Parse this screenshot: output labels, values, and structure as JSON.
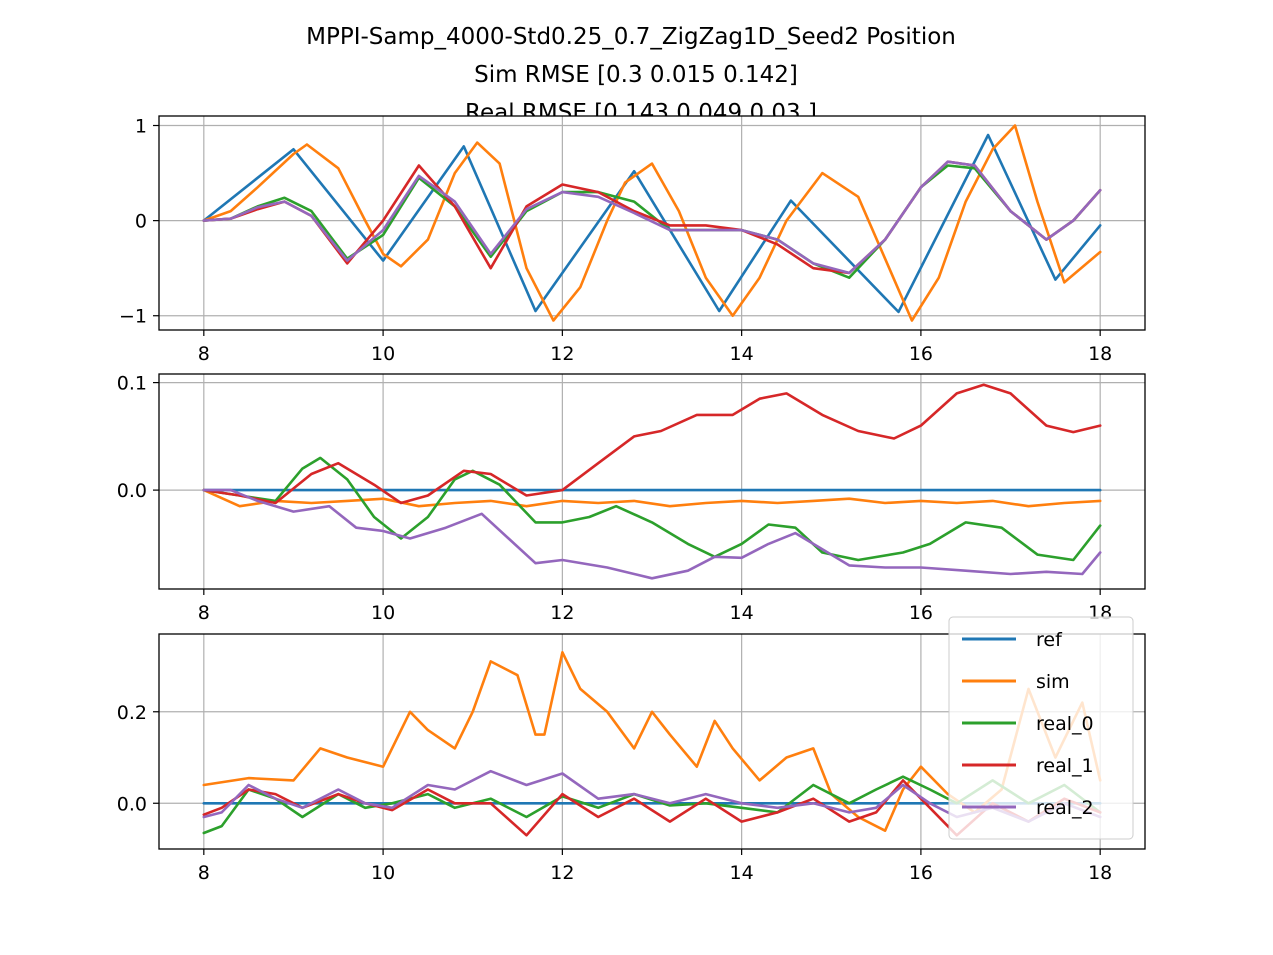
{
  "title_lines": [
    "MPPI-Samp_4000-Std0.25_0.7_ZigZag1D_Seed2   Position",
    "Sim RMSE [0.3   0.015 0.142]",
    "Real RMSE [0.143 0.049 0.03 ]"
  ],
  "colors": {
    "ref": "#1f77b4",
    "sim": "#ff7f0e",
    "real_0": "#2ca02c",
    "real_1": "#d62728",
    "real_2": "#9467bd"
  },
  "legend": [
    "ref",
    "sim",
    "real_0",
    "real_1",
    "real_2"
  ],
  "chart_data": [
    {
      "type": "line",
      "xlim": [
        7.5,
        18.5
      ],
      "ylim": [
        -1.15,
        1.1
      ],
      "xticks": [
        8,
        10,
        12,
        14,
        16,
        18
      ],
      "yticks": [
        -1,
        0,
        1
      ],
      "ytick_labels": [
        "−1",
        "0",
        "1"
      ],
      "grid": true,
      "series": [
        {
          "name": "ref",
          "x": [
            8.0,
            9.0,
            10.0,
            10.9,
            11.7,
            12.8,
            13.75,
            14.55,
            15.75,
            16.75,
            17.5,
            18.0
          ],
          "y": [
            0.0,
            0.75,
            -0.42,
            0.78,
            -0.95,
            0.52,
            -0.95,
            0.21,
            -0.96,
            0.9,
            -0.62,
            -0.05
          ]
        },
        {
          "name": "sim",
          "x": [
            8.0,
            8.3,
            8.6,
            9.0,
            9.15,
            9.5,
            9.8,
            10.0,
            10.2,
            10.5,
            10.8,
            11.05,
            11.3,
            11.6,
            11.9,
            12.2,
            12.5,
            12.7,
            13.0,
            13.3,
            13.6,
            13.9,
            14.2,
            14.5,
            14.9,
            15.3,
            15.6,
            15.9,
            16.2,
            16.5,
            16.8,
            17.05,
            17.3,
            17.6,
            18.0
          ],
          "y": [
            0.0,
            0.1,
            0.35,
            0.7,
            0.8,
            0.55,
            0.0,
            -0.35,
            -0.48,
            -0.2,
            0.5,
            0.82,
            0.6,
            -0.5,
            -1.05,
            -0.7,
            0.0,
            0.4,
            0.6,
            0.1,
            -0.6,
            -1.0,
            -0.6,
            0.0,
            0.5,
            0.25,
            -0.4,
            -1.05,
            -0.6,
            0.2,
            0.75,
            1.0,
            0.2,
            -0.65,
            -0.33
          ]
        },
        {
          "name": "real_0",
          "x": [
            8.0,
            8.3,
            8.6,
            8.9,
            9.2,
            9.6,
            10.0,
            10.4,
            10.8,
            11.2,
            11.6,
            12.0,
            12.4,
            12.8,
            13.2,
            13.6,
            14.0,
            14.4,
            14.8,
            15.2,
            15.6,
            16.0,
            16.3,
            16.6,
            17.0,
            17.4,
            17.7,
            18.0
          ],
          "y": [
            0.0,
            0.02,
            0.15,
            0.24,
            0.1,
            -0.4,
            -0.15,
            0.45,
            0.15,
            -0.38,
            0.1,
            0.3,
            0.3,
            0.2,
            -0.1,
            -0.1,
            -0.1,
            -0.2,
            -0.45,
            -0.6,
            -0.2,
            0.35,
            0.58,
            0.55,
            0.1,
            -0.2,
            0.0,
            0.32
          ]
        },
        {
          "name": "real_1",
          "x": [
            8.0,
            8.3,
            8.6,
            8.9,
            9.2,
            9.6,
            10.0,
            10.4,
            10.8,
            11.2,
            11.6,
            12.0,
            12.4,
            12.8,
            13.2,
            13.6,
            14.0,
            14.4,
            14.8,
            15.2,
            15.6,
            16.0,
            16.3,
            16.6,
            17.0,
            17.4,
            17.7,
            18.0
          ],
          "y": [
            0.0,
            0.02,
            0.12,
            0.2,
            0.05,
            -0.45,
            0.0,
            0.58,
            0.15,
            -0.5,
            0.15,
            0.38,
            0.3,
            0.1,
            -0.05,
            -0.05,
            -0.1,
            -0.25,
            -0.5,
            -0.55,
            -0.2,
            0.35,
            0.62,
            0.58,
            0.1,
            -0.2,
            0.0,
            0.32
          ]
        },
        {
          "name": "real_2",
          "x": [
            8.0,
            8.3,
            8.6,
            8.9,
            9.2,
            9.6,
            10.0,
            10.4,
            10.8,
            11.2,
            11.6,
            12.0,
            12.4,
            12.8,
            13.2,
            13.6,
            14.0,
            14.4,
            14.8,
            15.2,
            15.6,
            16.0,
            16.3,
            16.6,
            17.0,
            17.4,
            17.7,
            18.0
          ],
          "y": [
            0.0,
            0.02,
            0.14,
            0.2,
            0.05,
            -0.42,
            -0.1,
            0.47,
            0.2,
            -0.35,
            0.12,
            0.3,
            0.25,
            0.08,
            -0.1,
            -0.1,
            -0.1,
            -0.2,
            -0.45,
            -0.55,
            -0.2,
            0.35,
            0.62,
            0.58,
            0.1,
            -0.2,
            0.0,
            0.32
          ]
        }
      ]
    },
    {
      "type": "line",
      "xlim": [
        7.5,
        18.5
      ],
      "ylim": [
        -0.092,
        0.108
      ],
      "xticks": [
        8,
        10,
        12,
        14,
        16,
        18
      ],
      "yticks": [
        0.0,
        0.1
      ],
      "ytick_labels": [
        "0.0",
        "0.1"
      ],
      "grid": true,
      "series": [
        {
          "name": "ref",
          "x": [
            8.0,
            18.0
          ],
          "y": [
            0.0,
            0.0
          ]
        },
        {
          "name": "sim",
          "x": [
            8.0,
            8.4,
            8.8,
            9.2,
            9.6,
            10.0,
            10.4,
            10.8,
            11.2,
            11.6,
            12.0,
            12.4,
            12.8,
            13.2,
            13.6,
            14.0,
            14.4,
            14.8,
            15.2,
            15.6,
            16.0,
            16.4,
            16.8,
            17.2,
            17.6,
            18.0
          ],
          "y": [
            0.0,
            -0.015,
            -0.01,
            -0.012,
            -0.01,
            -0.008,
            -0.015,
            -0.012,
            -0.01,
            -0.015,
            -0.01,
            -0.012,
            -0.01,
            -0.015,
            -0.012,
            -0.01,
            -0.012,
            -0.01,
            -0.008,
            -0.012,
            -0.01,
            -0.012,
            -0.01,
            -0.015,
            -0.012,
            -0.01
          ]
        },
        {
          "name": "real_0",
          "x": [
            8.0,
            8.4,
            8.8,
            9.1,
            9.3,
            9.6,
            9.9,
            10.2,
            10.5,
            10.8,
            11.0,
            11.3,
            11.7,
            12.0,
            12.3,
            12.6,
            13.0,
            13.4,
            13.7,
            14.0,
            14.3,
            14.6,
            14.9,
            15.3,
            15.8,
            16.1,
            16.5,
            16.9,
            17.3,
            17.7,
            18.0
          ],
          "y": [
            0.0,
            -0.005,
            -0.01,
            0.02,
            0.03,
            0.01,
            -0.025,
            -0.045,
            -0.025,
            0.01,
            0.018,
            0.005,
            -0.03,
            -0.03,
            -0.025,
            -0.015,
            -0.03,
            -0.05,
            -0.062,
            -0.05,
            -0.032,
            -0.035,
            -0.058,
            -0.065,
            -0.058,
            -0.05,
            -0.03,
            -0.035,
            -0.06,
            -0.065,
            -0.033
          ]
        },
        {
          "name": "real_1",
          "x": [
            8.0,
            8.4,
            8.8,
            9.2,
            9.5,
            9.9,
            10.2,
            10.5,
            10.9,
            11.2,
            11.6,
            12.0,
            12.4,
            12.8,
            13.1,
            13.5,
            13.9,
            14.2,
            14.5,
            14.9,
            15.3,
            15.7,
            16.0,
            16.4,
            16.7,
            17.0,
            17.4,
            17.7,
            18.0
          ],
          "y": [
            0.0,
            -0.005,
            -0.012,
            0.015,
            0.025,
            0.005,
            -0.012,
            -0.005,
            0.018,
            0.015,
            -0.005,
            0.0,
            0.025,
            0.05,
            0.055,
            0.07,
            0.07,
            0.085,
            0.09,
            0.07,
            0.055,
            0.048,
            0.06,
            0.09,
            0.098,
            0.09,
            0.06,
            0.054,
            0.06
          ]
        },
        {
          "name": "real_2",
          "x": [
            8.0,
            8.3,
            8.6,
            9.0,
            9.4,
            9.7,
            10.0,
            10.3,
            10.7,
            11.1,
            11.4,
            11.7,
            12.0,
            12.5,
            13.0,
            13.4,
            13.7,
            14.0,
            14.3,
            14.6,
            14.9,
            15.2,
            15.6,
            16.0,
            16.5,
            17.0,
            17.4,
            17.8,
            18.0
          ],
          "y": [
            0.0,
            0.0,
            -0.01,
            -0.02,
            -0.015,
            -0.035,
            -0.038,
            -0.045,
            -0.035,
            -0.022,
            -0.045,
            -0.068,
            -0.065,
            -0.072,
            -0.082,
            -0.075,
            -0.062,
            -0.063,
            -0.05,
            -0.04,
            -0.055,
            -0.07,
            -0.072,
            -0.072,
            -0.075,
            -0.078,
            -0.076,
            -0.078,
            -0.058
          ]
        }
      ]
    },
    {
      "type": "line",
      "xlim": [
        7.5,
        18.5
      ],
      "ylim": [
        -0.1,
        0.37
      ],
      "xticks": [
        8,
        10,
        12,
        14,
        16,
        18
      ],
      "yticks": [
        0.0,
        0.2
      ],
      "ytick_labels": [
        "0.0",
        "0.2"
      ],
      "grid": true,
      "legend_position": "top-right",
      "series": [
        {
          "name": "ref",
          "x": [
            8.0,
            18.0
          ],
          "y": [
            0.0,
            0.0
          ]
        },
        {
          "name": "sim",
          "x": [
            8.0,
            8.5,
            9.0,
            9.3,
            9.6,
            10.0,
            10.3,
            10.5,
            10.8,
            11.0,
            11.2,
            11.5,
            11.7,
            11.8,
            12.0,
            12.2,
            12.5,
            12.8,
            13.0,
            13.2,
            13.5,
            13.7,
            13.9,
            14.2,
            14.5,
            14.8,
            15.0,
            15.3,
            15.6,
            15.8,
            16.0,
            16.3,
            16.6,
            16.9,
            17.2,
            17.5,
            17.8,
            18.0
          ],
          "y": [
            0.04,
            0.055,
            0.05,
            0.12,
            0.1,
            0.08,
            0.2,
            0.16,
            0.12,
            0.2,
            0.31,
            0.28,
            0.15,
            0.15,
            0.33,
            0.25,
            0.2,
            0.12,
            0.2,
            0.15,
            0.08,
            0.18,
            0.12,
            0.05,
            0.1,
            0.12,
            0.02,
            -0.03,
            -0.06,
            0.03,
            0.08,
            0.02,
            -0.02,
            0.03,
            0.25,
            0.1,
            0.22,
            0.05
          ]
        },
        {
          "name": "real_0",
          "x": [
            8.0,
            8.2,
            8.5,
            8.8,
            9.1,
            9.5,
            9.8,
            10.1,
            10.5,
            10.8,
            11.2,
            11.6,
            12.0,
            12.4,
            12.8,
            13.2,
            13.6,
            14.0,
            14.4,
            14.8,
            15.2,
            15.5,
            15.8,
            16.1,
            16.4,
            16.8,
            17.2,
            17.6,
            18.0
          ],
          "y": [
            -0.065,
            -0.05,
            0.03,
            0.01,
            -0.03,
            0.02,
            -0.01,
            0.0,
            0.02,
            -0.01,
            0.01,
            -0.03,
            0.015,
            -0.01,
            0.02,
            -0.005,
            0.0,
            -0.01,
            -0.02,
            0.04,
            0.0,
            0.03,
            0.058,
            0.03,
            0.0,
            0.05,
            0.0,
            0.04,
            -0.02
          ]
        },
        {
          "name": "real_1",
          "x": [
            8.0,
            8.2,
            8.5,
            8.8,
            9.1,
            9.5,
            9.8,
            10.1,
            10.5,
            10.8,
            11.2,
            11.6,
            12.0,
            12.4,
            12.8,
            13.2,
            13.6,
            14.0,
            14.4,
            14.8,
            15.2,
            15.5,
            15.8,
            16.1,
            16.4,
            16.8,
            17.2,
            17.6,
            18.0
          ],
          "y": [
            -0.025,
            -0.01,
            0.03,
            0.02,
            -0.01,
            0.02,
            0.0,
            -0.015,
            0.03,
            0.0,
            0.0,
            -0.07,
            0.02,
            -0.03,
            0.01,
            -0.04,
            0.01,
            -0.04,
            -0.02,
            0.01,
            -0.04,
            -0.02,
            0.05,
            -0.01,
            -0.07,
            0.0,
            -0.04,
            0.01,
            -0.02
          ]
        },
        {
          "name": "real_2",
          "x": [
            8.0,
            8.2,
            8.5,
            8.8,
            9.1,
            9.5,
            9.8,
            10.1,
            10.5,
            10.8,
            11.2,
            11.6,
            12.0,
            12.4,
            12.8,
            13.2,
            13.6,
            14.0,
            14.4,
            14.8,
            15.2,
            15.5,
            15.8,
            16.1,
            16.4,
            16.8,
            17.2,
            17.6,
            18.0
          ],
          "y": [
            -0.03,
            -0.02,
            0.04,
            0.01,
            -0.01,
            0.03,
            0.0,
            -0.01,
            0.04,
            0.03,
            0.07,
            0.04,
            0.065,
            0.01,
            0.02,
            0.0,
            0.02,
            0.0,
            -0.01,
            0.0,
            -0.02,
            -0.01,
            0.04,
            0.0,
            -0.03,
            -0.01,
            -0.04,
            0.0,
            -0.03
          ]
        }
      ]
    }
  ]
}
